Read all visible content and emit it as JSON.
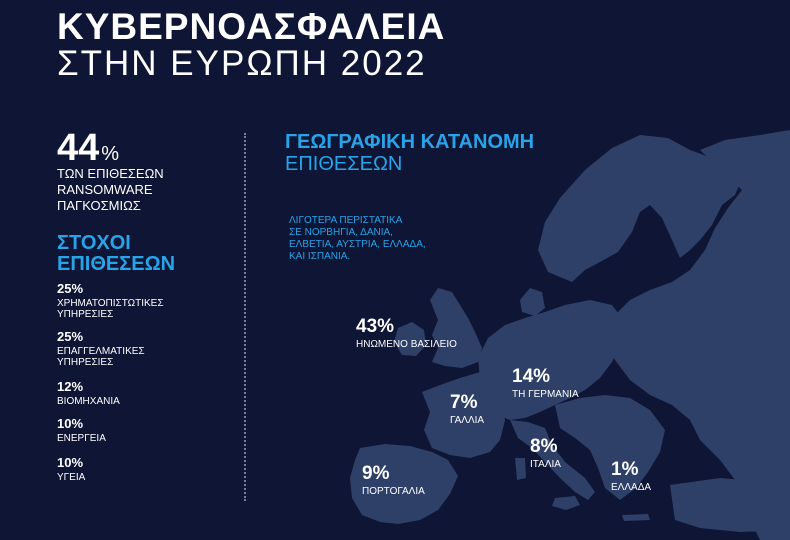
{
  "header": {
    "title_line1": "ΚΥΒΕΡΝΟΑΣΦΑΛΕΙΑ",
    "title_line2": "ΣΤΗΝ ΕΥΡΩΠΗ 2022"
  },
  "ransomware": {
    "value": "44",
    "unit": "%",
    "label_lines": [
      "ΤΩΝ ΕΠΙΘΕΣΕΩΝ",
      "RANSOMWARE",
      "ΠΑΓΚΟΣΜΙΩΣ"
    ]
  },
  "targets": {
    "heading_lines": [
      "ΣΤΟΧΟΙ",
      "ΕΠΙΘΕΣΕΩΝ"
    ],
    "items": [
      {
        "value": "25%",
        "label_lines": [
          "ΧΡΗΜΑΤΟΠΙΣΤΩΤΙΚΕΣ",
          "ΥΠΗΡΕΣΙΕΣ"
        ]
      },
      {
        "value": "25%",
        "label_lines": [
          "ΕΠΑΓΓΕΛΜΑΤΙΚΕΣ",
          "ΥΠΗΡΕΣΙΕΣ"
        ]
      },
      {
        "value": "12%",
        "label_lines": [
          "ΒΙΟΜΗΧΑΝΙΑ"
        ]
      },
      {
        "value": "10%",
        "label_lines": [
          "ΕΝΕΡΓΕΙΑ"
        ]
      },
      {
        "value": "10%",
        "label_lines": [
          "ΥΓΕΙΑ"
        ]
      }
    ]
  },
  "geo": {
    "heading": "ΓΕΩΓΡΑΦΙΚΗ ΚΑΤΑΝΟΜΗ",
    "subheading": "ΕΠΙΘΕΣΕΩΝ",
    "note_lines": [
      "ΛΙΓΟΤΕΡΑ ΠΕΡΙΣΤΑΤΙΚΑ",
      "ΣΕ ΝΟΡΒΗΓΙΑ, ΔΑΝΙΑ,",
      "ΕΛΒΕΤΙΑ, ΑΥΣΤΡΙΑ, ΕΛΛΑΔΑ,",
      "ΚΑΙ ΙΣΠΑΝΙΑ."
    ],
    "countries": [
      {
        "value": "43%",
        "label": "ΗΝΩΜΕΝΟ ΒΑΣΙΛΕΙΟ"
      },
      {
        "value": "14%",
        "label": "ΤΗ ΓΕΡΜΑΝΙΑ"
      },
      {
        "value": "7%",
        "label": "ΓΑΛΛΙΑ"
      },
      {
        "value": "8%",
        "label": "ΙΤΑΛΙΑ"
      },
      {
        "value": "9%",
        "label": "ΠΟΡΤΟΓΑΛΙΑ"
      },
      {
        "value": "1%",
        "label": "ΕΛΛΑΔΑ"
      }
    ]
  },
  "colors": {
    "background": "#0e1535",
    "accent": "#29a3e8",
    "map_land": "#2f4068"
  }
}
